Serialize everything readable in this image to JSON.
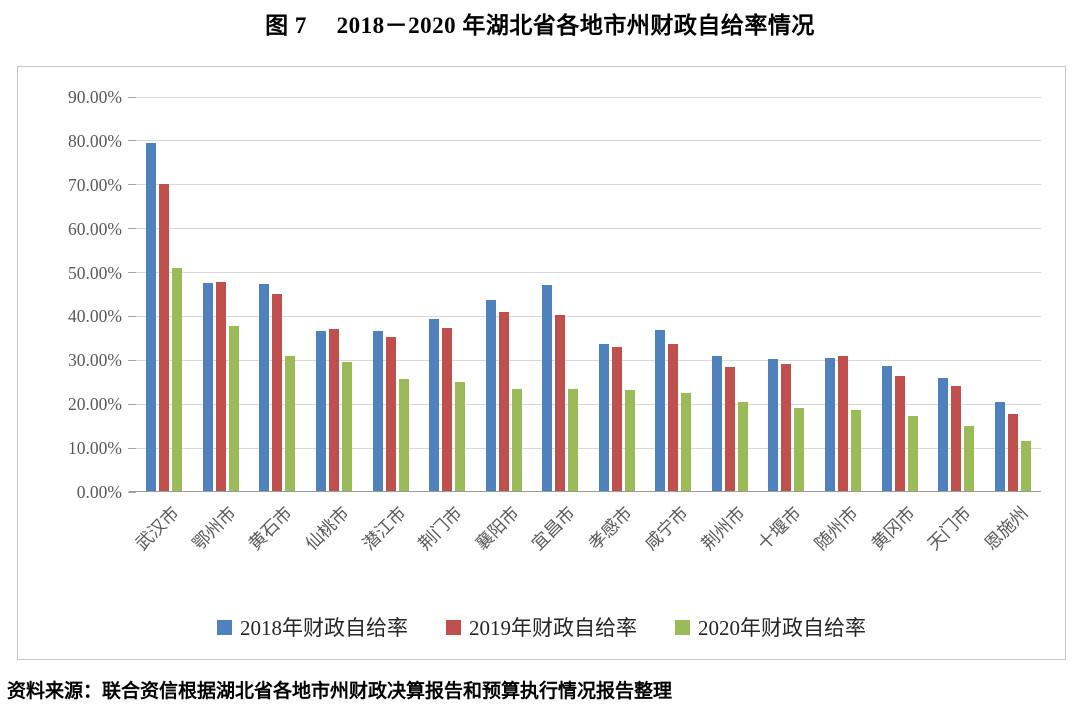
{
  "header": {
    "title": "图 7　 2018－2020 年湖北省各地市州财政自给率情况"
  },
  "footer": {
    "source": "资料来源：联合资信根据湖北省各地市州财政决算报告和预算执行情况报告整理"
  },
  "chart_data": {
    "type": "bar",
    "title": "图 7　 2018－2020 年湖北省各地市州财政自给率情况",
    "categories": [
      "武汉市",
      "鄂州市",
      "黄石市",
      "仙桃市",
      "潜江市",
      "荆门市",
      "襄阳市",
      "宜昌市",
      "孝感市",
      "咸宁市",
      "荆州市",
      "十堰市",
      "随州市",
      "黄冈市",
      "天门市",
      "恩施州"
    ],
    "series": [
      {
        "name": "2018年财政自给率",
        "color": "#4F81BD",
        "values": [
          79.2,
          47.5,
          47.1,
          36.5,
          36.5,
          39.3,
          43.6,
          46.9,
          33.6,
          36.7,
          30.8,
          30.0,
          30.4,
          28.5,
          25.8,
          20.2
        ]
      },
      {
        "name": "2019年财政自给率",
        "color": "#C0504D",
        "values": [
          69.9,
          47.7,
          44.9,
          37.0,
          35.2,
          37.2,
          40.9,
          40.0,
          32.8,
          33.5,
          28.2,
          29.0,
          30.7,
          26.2,
          23.9,
          17.5
        ]
      },
      {
        "name": "2020年财政自给率",
        "color": "#9BBB59",
        "values": [
          50.7,
          37.5,
          30.8,
          29.5,
          25.6,
          24.8,
          23.2,
          23.3,
          23.1,
          22.3,
          20.3,
          19.0,
          18.5,
          17.1,
          14.8,
          11.5
        ]
      }
    ],
    "y_ticks": [
      "0.00%",
      "10.00%",
      "20.00%",
      "30.00%",
      "40.00%",
      "50.00%",
      "60.00%",
      "70.00%",
      "80.00%",
      "90.00%"
    ],
    "ylim": [
      0,
      90
    ],
    "xlabel": "",
    "ylabel": "",
    "grid": "horizontal",
    "legend_position": "bottom",
    "style": {
      "gridline_color": "#D9D9D9",
      "axis_color": "#9B9B9B",
      "tick_label_color": "#595959",
      "frame_border_color": "#C6C6C6",
      "background": "#FFFFFF"
    }
  }
}
